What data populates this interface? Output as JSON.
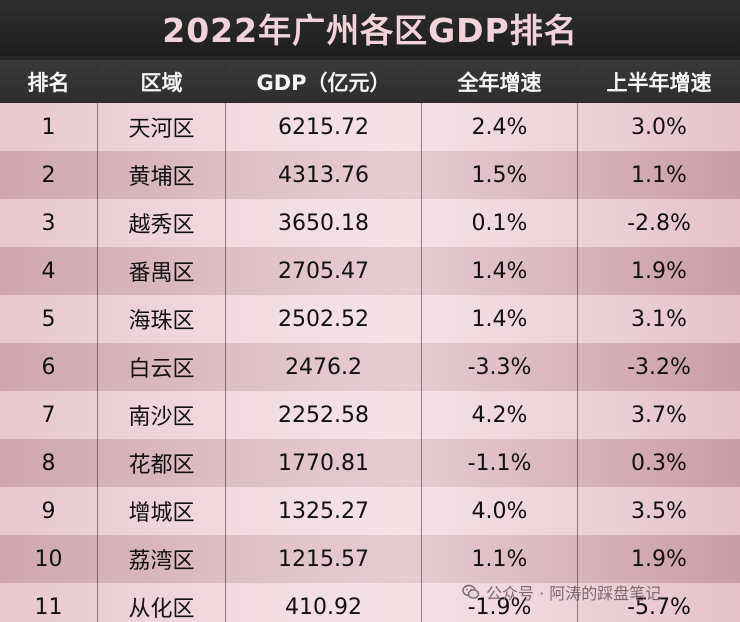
{
  "title": "2022年广州各区GDP排名",
  "headers": {
    "rank": "排名",
    "district": "区域",
    "gdp": "GDP（亿元）",
    "full_year": "全年增速",
    "half_year": "上半年增速"
  },
  "rows": [
    {
      "rank": "1",
      "district": "天河区",
      "gdp": "6215.72",
      "full_year": "2.4%",
      "half_year": "3.0%"
    },
    {
      "rank": "2",
      "district": "黄埔区",
      "gdp": "4313.76",
      "full_year": "1.5%",
      "half_year": "1.1%"
    },
    {
      "rank": "3",
      "district": "越秀区",
      "gdp": "3650.18",
      "full_year": "0.1%",
      "half_year": "-2.8%"
    },
    {
      "rank": "4",
      "district": "番禺区",
      "gdp": "2705.47",
      "full_year": "1.4%",
      "half_year": "1.9%"
    },
    {
      "rank": "5",
      "district": "海珠区",
      "gdp": "2502.52",
      "full_year": "1.4%",
      "half_year": "3.1%"
    },
    {
      "rank": "6",
      "district": "白云区",
      "gdp": "2476.2",
      "full_year": "-3.3%",
      "half_year": "-3.2%"
    },
    {
      "rank": "7",
      "district": "南沙区",
      "gdp": "2252.58",
      "full_year": "4.2%",
      "half_year": "3.7%"
    },
    {
      "rank": "8",
      "district": "花都区",
      "gdp": "1770.81",
      "full_year": "-1.1%",
      "half_year": "0.3%"
    },
    {
      "rank": "9",
      "district": "增城区",
      "gdp": "1325.27",
      "full_year": "4.0%",
      "half_year": "3.5%"
    },
    {
      "rank": "10",
      "district": "荔湾区",
      "gdp": "1215.57",
      "full_year": "1.1%",
      "half_year": "1.9%"
    },
    {
      "rank": "11",
      "district": "从化区",
      "gdp": "410.92",
      "full_year": "-1.9%",
      "half_year": "-5.7%"
    }
  ],
  "watermark": {
    "text": "公众号 · 阿涛的踩盘笔记",
    "icon": "wechat-icon"
  }
}
